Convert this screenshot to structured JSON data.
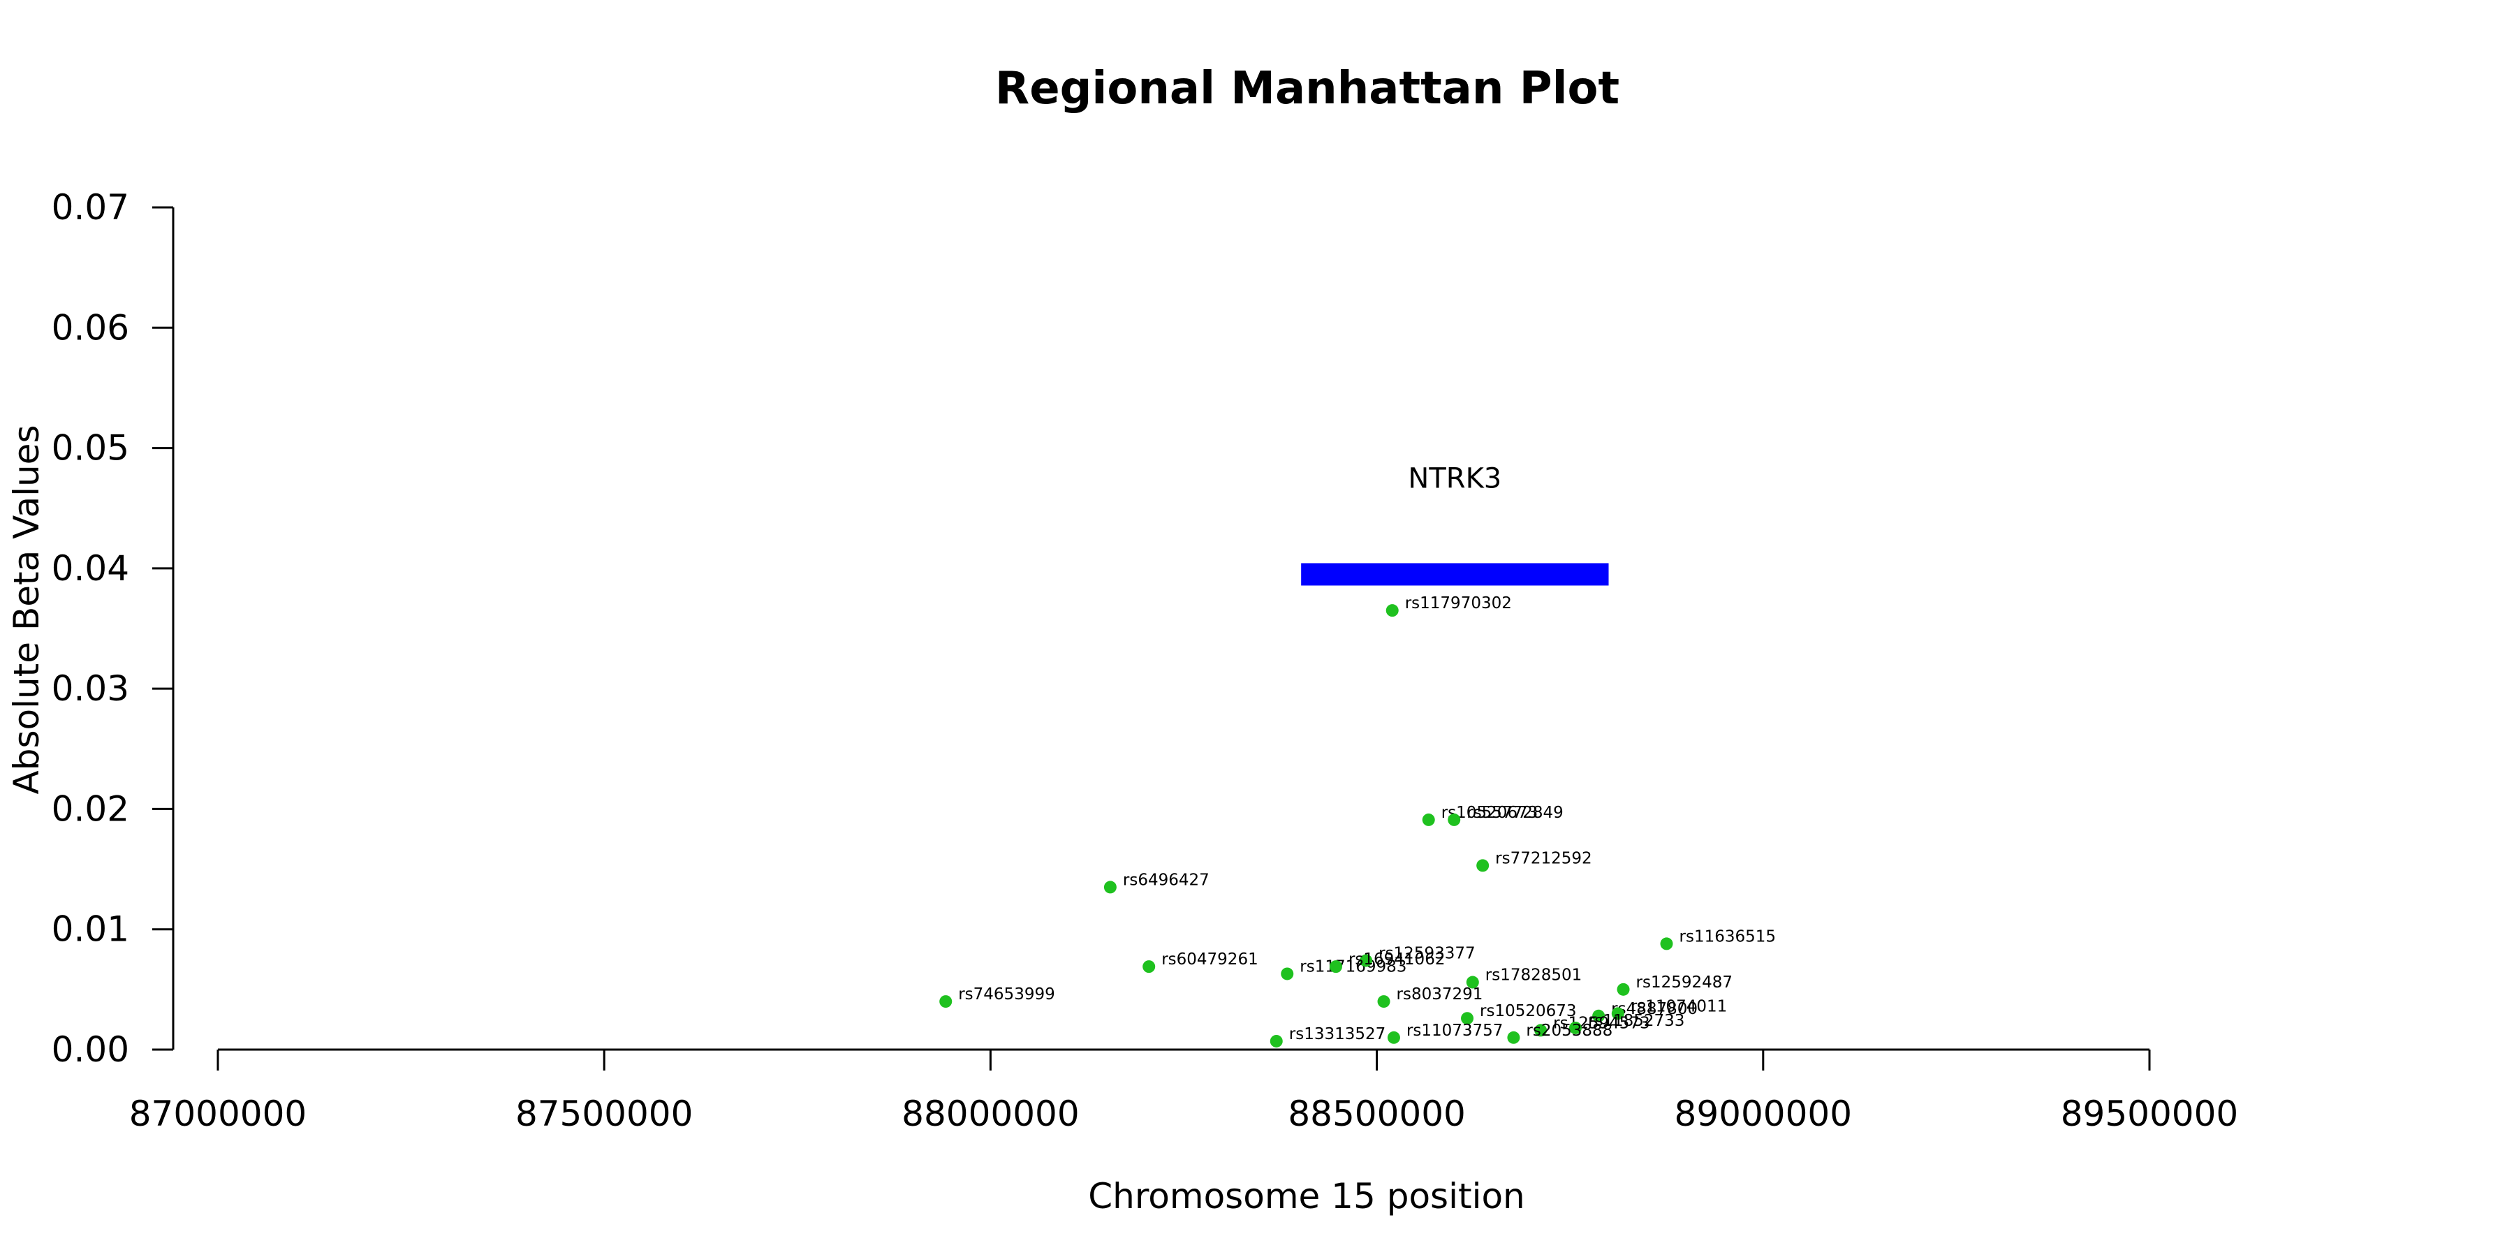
{
  "chart_data": {
    "type": "scatter",
    "title": "Regional Manhattan Plot",
    "xlabel": "Chromosome 15 position",
    "ylabel": "Absolute Beta Values",
    "xlim": [
      87000000,
      89500000
    ],
    "ylim": [
      0,
      0.07
    ],
    "x_ticks": [
      87000000,
      87500000,
      88000000,
      88500000,
      89000000,
      89500000
    ],
    "x_tick_labels": [
      "87000000",
      "87500000",
      "88000000",
      "88500000",
      "89000000",
      "89500000"
    ],
    "y_ticks": [
      0,
      0.01,
      0.02,
      0.03,
      0.04,
      0.05,
      0.06,
      0.07
    ],
    "y_tick_labels": [
      "0.00",
      "0.01",
      "0.02",
      "0.03",
      "0.04",
      "0.05",
      "0.06",
      "0.07"
    ],
    "grid": false,
    "point_color": "#1fc11f",
    "gene": {
      "name": "NTRK3",
      "start": 88402000,
      "end": 88800000,
      "y": 0.0395,
      "color": "#0000ff"
    },
    "points": [
      {
        "rsid": "rs117970302",
        "x": 88520000,
        "y": 0.0365
      },
      {
        "rsid": "rs10520673",
        "x": 88567000,
        "y": 0.0191
      },
      {
        "rsid": "rs55772849",
        "x": 88600000,
        "y": 0.0191
      },
      {
        "rsid": "rs77212592",
        "x": 88637000,
        "y": 0.0153
      },
      {
        "rsid": "rs6496427",
        "x": 88155000,
        "y": 0.0135
      },
      {
        "rsid": "rs11636515",
        "x": 88875000,
        "y": 0.0088
      },
      {
        "rsid": "rs60479261",
        "x": 88205000,
        "y": 0.0069
      },
      {
        "rsid": "rs117169983",
        "x": 88384000,
        "y": 0.0063
      },
      {
        "rsid": "rs12593377",
        "x": 88486000,
        "y": 0.0074
      },
      {
        "rsid": "rs16941062",
        "x": 88447000,
        "y": 0.0069
      },
      {
        "rsid": "rs17828501",
        "x": 88624000,
        "y": 0.0056
      },
      {
        "rsid": "rs12592487",
        "x": 88819000,
        "y": 0.005
      },
      {
        "rsid": "rs74653999",
        "x": 87942000,
        "y": 0.004
      },
      {
        "rsid": "rs8037291",
        "x": 88509000,
        "y": 0.004
      },
      {
        "rsid": "rs10520673",
        "x": 88617000,
        "y": 0.0026
      },
      {
        "rsid": "rs4887800",
        "x": 88787000,
        "y": 0.0028
      },
      {
        "rsid": "rs11074011",
        "x": 88812000,
        "y": 0.003
      },
      {
        "rsid": "rs12594573",
        "x": 88712000,
        "y": 0.0016
      },
      {
        "rsid": "rs11852733",
        "x": 88757000,
        "y": 0.0018
      },
      {
        "rsid": "rs11073757",
        "x": 88522000,
        "y": 0.001
      },
      {
        "rsid": "rs2053888",
        "x": 88677000,
        "y": 0.001
      },
      {
        "rsid": "rs13313527",
        "x": 88370000,
        "y": 0.0007
      }
    ]
  }
}
